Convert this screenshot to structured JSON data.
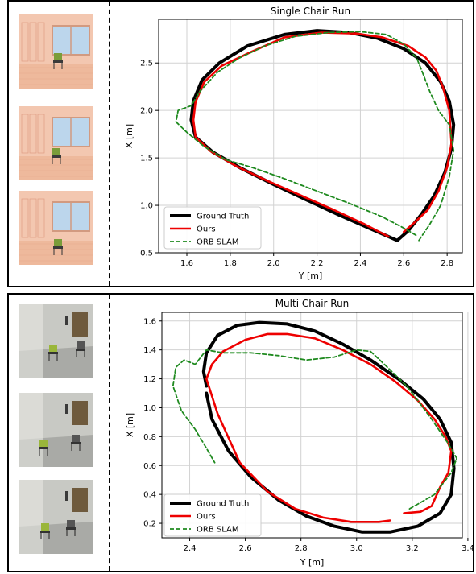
{
  "figure": {
    "panels": [
      {
        "id": "single",
        "thumbnails": [
          "scene-view-1",
          "scene-view-2",
          "scene-view-3"
        ],
        "scene_style": "pink-room"
      },
      {
        "id": "multi",
        "thumbnails": [
          "scene-view-1",
          "scene-view-2",
          "scene-view-3"
        ],
        "scene_style": "grey-room"
      }
    ]
  },
  "chart_data": [
    {
      "type": "line",
      "title": "Single Chair Run",
      "xlabel": "Y [m]",
      "ylabel": "X [m]",
      "xlim": [
        1.47,
        2.87
      ],
      "ylim": [
        0.5,
        2.96
      ],
      "xticks": [
        "1.6",
        "1.8",
        "2.0",
        "2.2",
        "2.4",
        "2.6",
        "2.8"
      ],
      "xtick_values": [
        1.6,
        1.8,
        2.0,
        2.2,
        2.4,
        2.6,
        2.8
      ],
      "yticks": [
        "0.5",
        "1.0",
        "1.5",
        "2.0",
        "2.5"
      ],
      "ytick_values": [
        0.5,
        1.0,
        1.5,
        2.0,
        2.5
      ],
      "grid": true,
      "legend_position": "bottom-left",
      "series": [
        {
          "name": "Ground Truth",
          "color": "#000000",
          "style": "solid",
          "width": 4,
          "x": [
            2.57,
            2.45,
            2.3,
            2.15,
            2.0,
            1.85,
            1.72,
            1.64,
            1.62,
            1.63,
            1.67,
            1.75,
            1.88,
            2.05,
            2.2,
            2.35,
            2.48,
            2.6,
            2.7,
            2.77,
            2.81,
            2.83,
            2.82,
            2.79,
            2.74,
            2.68,
            2.62,
            2.57
          ],
          "y": [
            0.63,
            0.75,
            0.9,
            1.06,
            1.22,
            1.39,
            1.56,
            1.72,
            1.9,
            2.1,
            2.32,
            2.5,
            2.68,
            2.8,
            2.84,
            2.82,
            2.76,
            2.65,
            2.5,
            2.3,
            2.1,
            1.85,
            1.6,
            1.35,
            1.1,
            0.9,
            0.73,
            0.63
          ]
        },
        {
          "name": "Ours",
          "color": "#ee0000",
          "style": "solid",
          "width": 2.6,
          "x": [
            2.53,
            2.42,
            2.28,
            2.12,
            1.97,
            1.83,
            1.71,
            1.64,
            1.63,
            1.64,
            1.68,
            1.76,
            1.9,
            2.05,
            2.22,
            2.38,
            2.5,
            2.62,
            2.7,
            2.75,
            2.78,
            2.81,
            2.82,
            2.8,
            2.76,
            2.71,
            2.65,
            2.6
          ],
          "y": [
            0.67,
            0.8,
            0.95,
            1.11,
            1.26,
            1.41,
            1.57,
            1.72,
            1.9,
            2.09,
            2.3,
            2.47,
            2.62,
            2.77,
            2.82,
            2.81,
            2.77,
            2.68,
            2.56,
            2.42,
            2.25,
            2.0,
            1.65,
            1.4,
            1.15,
            0.95,
            0.82,
            0.72
          ]
        },
        {
          "name": "ORB SLAM",
          "color": "#1f8a1f",
          "style": "dashed",
          "width": 1.8,
          "x": [
            2.67,
            2.72,
            2.77,
            2.81,
            2.83,
            2.81,
            2.76,
            2.72,
            2.69,
            2.66,
            2.6,
            2.52,
            2.4,
            2.25,
            2.1,
            1.96,
            1.84,
            1.74,
            1.66,
            1.62,
            1.56,
            1.55,
            1.6,
            1.68,
            1.78,
            1.9,
            2.05,
            2.2,
            2.35,
            2.5,
            2.6,
            2.66
          ],
          "y": [
            0.63,
            0.8,
            1.0,
            1.3,
            1.58,
            1.85,
            2.0,
            2.2,
            2.38,
            2.55,
            2.7,
            2.8,
            2.83,
            2.82,
            2.78,
            2.68,
            2.55,
            2.4,
            2.2,
            2.05,
            2.0,
            1.88,
            1.77,
            1.62,
            1.48,
            1.4,
            1.28,
            1.15,
            1.02,
            0.88,
            0.76,
            0.68
          ]
        }
      ]
    },
    {
      "type": "line",
      "title": "Multi Chair Run",
      "xlabel": "Y [m]",
      "ylabel": "X [m]",
      "xlim": [
        2.3,
        3.38
      ],
      "ylim": [
        0.1,
        1.66
      ],
      "xticks": [
        "2.4",
        "2.6",
        "2.8",
        "3.0",
        "3.2",
        "3.4"
      ],
      "xtick_values": [
        2.4,
        2.6,
        2.8,
        3.0,
        3.2,
        3.4
      ],
      "yticks": [
        "0.2",
        "0.4",
        "0.6",
        "0.8",
        "1.0",
        "1.2",
        "1.4",
        "1.6"
      ],
      "ytick_values": [
        0.2,
        0.4,
        0.6,
        0.8,
        1.0,
        1.2,
        1.4,
        1.6
      ],
      "grid": true,
      "legend_position": "bottom-left",
      "series": [
        {
          "name": "Ground Truth",
          "color": "#000000",
          "style": "solid",
          "width": 4,
          "x": [
            2.46,
            2.45,
            2.46,
            2.5,
            2.57,
            2.65,
            2.75,
            2.85,
            2.95,
            3.05,
            3.15,
            3.24,
            3.3,
            3.34,
            3.35,
            3.34,
            3.3,
            3.22,
            3.12,
            3.02,
            2.92,
            2.82,
            2.72,
            2.62,
            2.54,
            2.48,
            2.46
          ],
          "y": [
            1.15,
            1.25,
            1.38,
            1.5,
            1.57,
            1.59,
            1.58,
            1.53,
            1.44,
            1.33,
            1.2,
            1.06,
            0.92,
            0.76,
            0.58,
            0.4,
            0.27,
            0.18,
            0.14,
            0.14,
            0.18,
            0.25,
            0.36,
            0.52,
            0.7,
            0.92,
            1.1
          ]
        },
        {
          "name": "Ours",
          "color": "#ee0000",
          "style": "solid",
          "width": 2.6,
          "x": [
            3.17,
            3.23,
            3.27,
            3.3,
            3.33,
            3.34,
            3.32,
            3.28,
            3.22,
            3.14,
            3.05,
            2.95,
            2.85,
            2.75,
            2.68,
            2.6,
            2.52,
            2.48,
            2.46,
            2.5,
            2.58,
            2.68,
            2.78,
            2.88,
            2.98,
            3.08,
            3.12
          ],
          "y": [
            0.27,
            0.28,
            0.32,
            0.45,
            0.55,
            0.7,
            0.8,
            0.92,
            1.05,
            1.18,
            1.3,
            1.4,
            1.48,
            1.51,
            1.51,
            1.47,
            1.39,
            1.3,
            1.2,
            0.96,
            0.62,
            0.42,
            0.3,
            0.24,
            0.21,
            0.21,
            0.22
          ]
        },
        {
          "name": "ORB SLAM",
          "color": "#1f8a1f",
          "style": "dashed",
          "width": 1.8,
          "x": [
            3.19,
            3.28,
            3.34,
            3.36,
            3.33,
            3.27,
            3.22,
            3.18,
            3.1,
            3.05,
            3.0,
            2.92,
            2.82,
            2.72,
            2.62,
            2.52,
            2.46,
            2.42,
            2.38,
            2.35,
            2.34,
            2.37,
            2.42,
            2.46,
            2.49
          ],
          "y": [
            0.3,
            0.4,
            0.55,
            0.65,
            0.75,
            0.92,
            1.05,
            1.15,
            1.3,
            1.39,
            1.4,
            1.35,
            1.33,
            1.36,
            1.38,
            1.38,
            1.4,
            1.3,
            1.33,
            1.28,
            1.15,
            0.98,
            0.85,
            0.72,
            0.62
          ]
        }
      ]
    }
  ]
}
